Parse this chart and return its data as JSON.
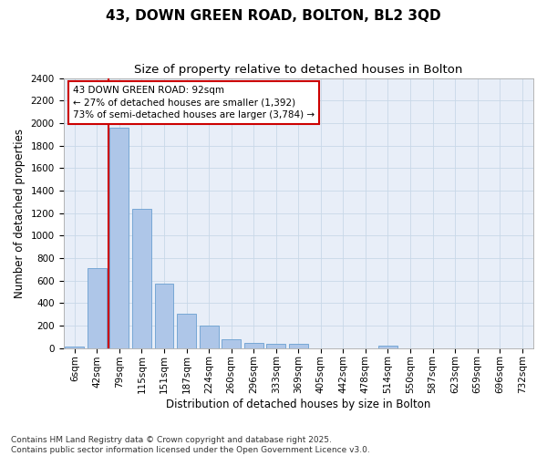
{
  "title": "43, DOWN GREEN ROAD, BOLTON, BL2 3QD",
  "subtitle": "Size of property relative to detached houses in Bolton",
  "xlabel": "Distribution of detached houses by size in Bolton",
  "ylabel": "Number of detached properties",
  "bar_labels": [
    "6sqm",
    "42sqm",
    "79sqm",
    "115sqm",
    "151sqm",
    "187sqm",
    "224sqm",
    "260sqm",
    "296sqm",
    "333sqm",
    "369sqm",
    "405sqm",
    "442sqm",
    "478sqm",
    "514sqm",
    "550sqm",
    "587sqm",
    "623sqm",
    "659sqm",
    "696sqm",
    "732sqm"
  ],
  "bar_values": [
    15,
    710,
    1960,
    1240,
    575,
    305,
    200,
    80,
    48,
    35,
    35,
    0,
    0,
    0,
    22,
    0,
    0,
    0,
    0,
    0,
    0
  ],
  "bar_color": "#aec6e8",
  "bar_edge_color": "#6a9fd0",
  "grid_color": "#c8d8e8",
  "background_color": "#e8eef8",
  "vline_color": "#cc0000",
  "annotation_text": "43 DOWN GREEN ROAD: 92sqm\n← 27% of detached houses are smaller (1,392)\n73% of semi-detached houses are larger (3,784) →",
  "annotation_box_color": "#cc0000",
  "ylim": [
    0,
    2400
  ],
  "yticks": [
    0,
    200,
    400,
    600,
    800,
    1000,
    1200,
    1400,
    1600,
    1800,
    2000,
    2200,
    2400
  ],
  "footer": "Contains HM Land Registry data © Crown copyright and database right 2025.\nContains public sector information licensed under the Open Government Licence v3.0.",
  "title_fontsize": 11,
  "subtitle_fontsize": 9.5,
  "axis_label_fontsize": 8.5,
  "tick_fontsize": 7.5,
  "annotation_fontsize": 7.5,
  "footer_fontsize": 6.5
}
